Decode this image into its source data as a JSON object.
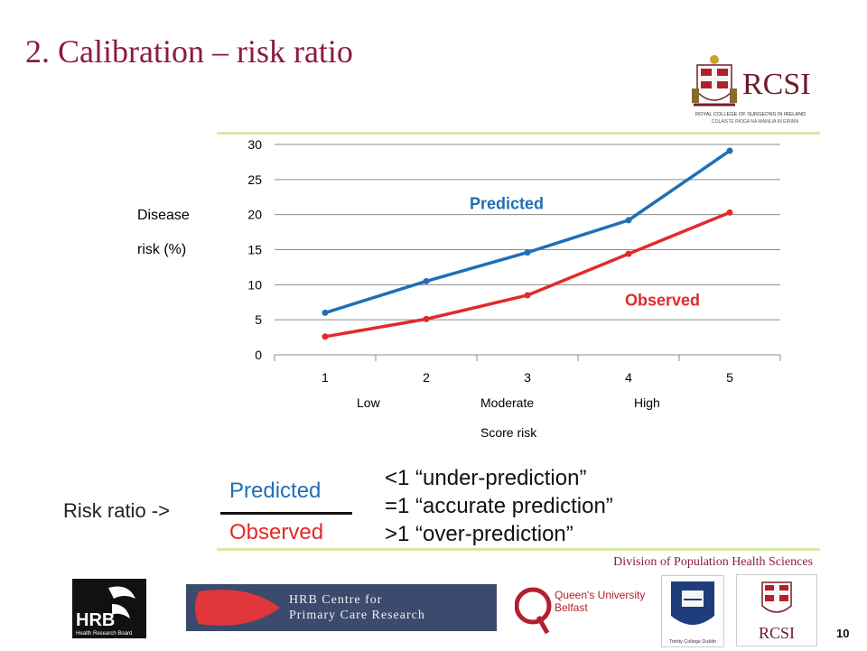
{
  "slide": {
    "title": "2.   Calibration – risk ratio",
    "page_number": "10",
    "division": "Division of Population Health Sciences"
  },
  "header_logo": {
    "name": "RCSI",
    "subtitle": "ROYAL COLLEGE OF SURGEONS IN IRELAND",
    "irish": "COLÁISTE RÍOGA NA MÁINLIÁ IN ÉIRINN"
  },
  "chart_data": {
    "type": "line",
    "x": [
      1,
      2,
      3,
      4,
      5
    ],
    "categories": [
      "1",
      "2",
      "3",
      "4",
      "5"
    ],
    "y_ticks": [
      "0",
      "5",
      "10",
      "15",
      "20",
      "25",
      "30"
    ],
    "ylim": [
      0,
      30
    ],
    "ylabel_line1": "Disease",
    "ylabel_line2": "risk (%)",
    "below_x_labels": [
      "Low",
      "Moderate",
      "High"
    ],
    "xlabel": "Score risk",
    "grid": true,
    "series": [
      {
        "name": "Predicted",
        "color": "#1f6fb5",
        "values": [
          6.0,
          10.5,
          14.6,
          19.2,
          29.1
        ]
      },
      {
        "name": "Observed",
        "color": "#e22a2a",
        "values": [
          2.6,
          5.1,
          8.5,
          14.4,
          20.3
        ]
      }
    ]
  },
  "ratio": {
    "label": "Risk ratio ->",
    "numerator": "Predicted",
    "denominator": "Observed",
    "interpretations": [
      "<1 “under-prediction”",
      "=1 “accurate prediction”",
      ">1 “over-prediction”"
    ]
  },
  "footer_logos": {
    "hrb": "HRB",
    "hrb_sub": "Health Research Board",
    "hrb_centre_line1": "HRB Centre for",
    "hrb_centre_line2": "Primary Care Research",
    "queens_line1": "Queen's University",
    "queens_line2": "Belfast",
    "trinity": "Trinity College Dublin",
    "rcsi": "RCSI"
  }
}
